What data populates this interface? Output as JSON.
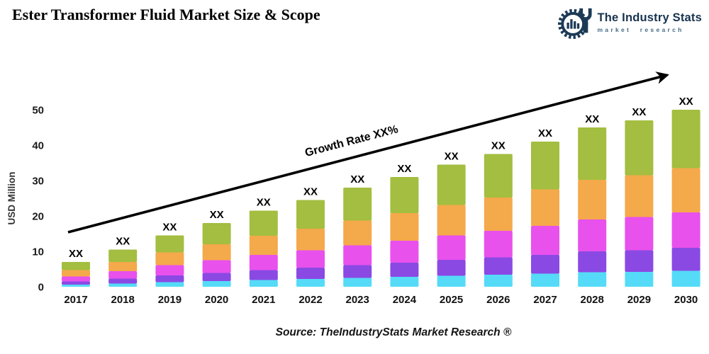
{
  "page": {
    "title": "Ester Transformer Fluid Market Size & Scope"
  },
  "logo": {
    "name": "The Industry Stats",
    "tagline": "market research",
    "color": "#17334f",
    "icon": "gear-wrench-chart-icon"
  },
  "chart_data": {
    "type": "bar",
    "stacked": true,
    "title": "Ester Transformer Fluid Market Size & Scope",
    "xlabel": "",
    "ylabel": "USD Million",
    "ylim": [
      0,
      50
    ],
    "yticks": [
      0,
      10,
      20,
      30,
      40,
      50
    ],
    "grid": false,
    "legend": false,
    "values_display": "XX",
    "growth_label": "Growth Rate XX%",
    "categories": [
      "2017",
      "2018",
      "2019",
      "2020",
      "2021",
      "2022",
      "2023",
      "2024",
      "2025",
      "2026",
      "2027",
      "2028",
      "2029",
      "2030"
    ],
    "series": [
      {
        "name": "cyan",
        "color": "#55DBF7",
        "values": [
          0.6,
          0.9,
          1.3,
          1.6,
          1.9,
          2.2,
          2.5,
          2.8,
          3.1,
          3.4,
          3.7,
          4.1,
          4.2,
          4.5
        ]
      },
      {
        "name": "purple",
        "color": "#8B49E4",
        "values": [
          0.9,
          1.4,
          1.9,
          2.3,
          2.8,
          3.2,
          3.6,
          4.0,
          4.5,
          4.9,
          5.3,
          5.9,
          6.1,
          6.5
        ]
      },
      {
        "name": "magenta",
        "color": "#E951EC",
        "values": [
          1.4,
          2.1,
          2.9,
          3.6,
          4.3,
          4.9,
          5.6,
          6.2,
          6.9,
          7.5,
          8.2,
          9.0,
          9.4,
          10.0
        ]
      },
      {
        "name": "orange",
        "color": "#F4A94B",
        "values": [
          1.8,
          2.6,
          3.6,
          4.5,
          5.4,
          6.1,
          7.0,
          7.8,
          8.6,
          9.4,
          10.3,
          11.2,
          11.8,
          12.5
        ]
      },
      {
        "name": "green",
        "color": "#A3BE40",
        "values": [
          2.3,
          3.5,
          4.8,
          6.0,
          7.1,
          8.1,
          9.3,
          10.2,
          11.4,
          12.3,
          13.5,
          14.8,
          15.5,
          16.5
        ]
      }
    ],
    "totals_estimated_usd_million": [
      7,
      10.5,
      14.5,
      18,
      21.5,
      24.5,
      28,
      31,
      34.5,
      37.5,
      41,
      45,
      47,
      50
    ],
    "arrow_color": "#000000"
  },
  "source": {
    "text": "Source: TheIndustryStats Market Research ®"
  }
}
